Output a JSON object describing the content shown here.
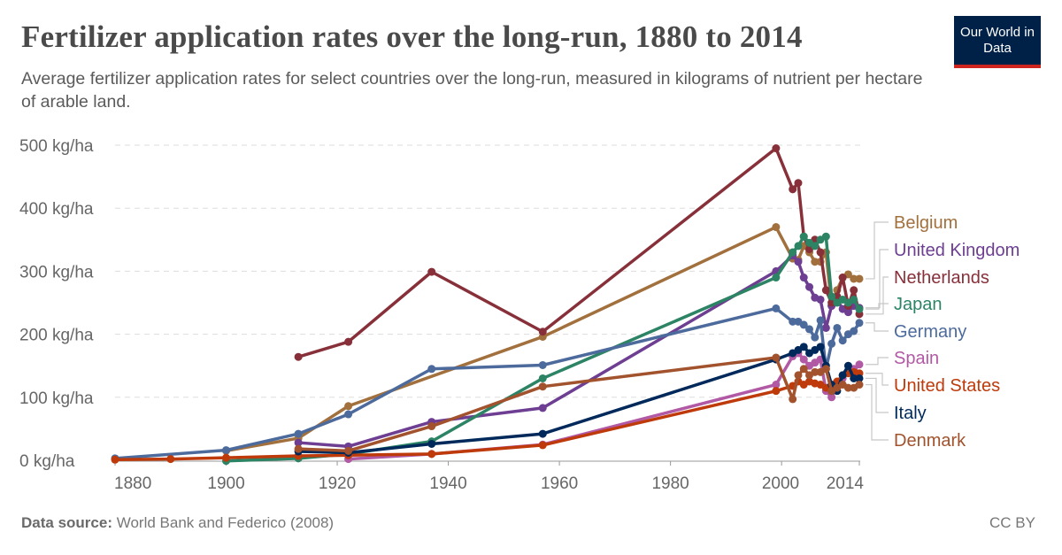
{
  "header": {
    "title": "Fertilizer application rates over the long-run, 1880 to 2014",
    "subtitle": "Average fertilizer application rates for select countries over the long-run, measured in kilograms of nutrient per hectare of arable land.",
    "logo": "Our World in Data"
  },
  "footer": {
    "source_label": "Data source:",
    "source": "World Bank and Federico (2008)",
    "license": "CC BY"
  },
  "chart_data": {
    "type": "line",
    "title": "Fertilizer application rates over the long-run, 1880 to 2014",
    "xlim": [
      1880,
      2014
    ],
    "ylim": [
      0,
      500
    ],
    "x_ticks": [
      "1880",
      "1900",
      "1920",
      "1940",
      "1960",
      "1980",
      "2000",
      "2014"
    ],
    "y_ticks": [
      "0 kg/ha",
      "100 kg/ha",
      "200 kg/ha",
      "300 kg/ha",
      "400 kg/ha",
      "500 kg/ha"
    ],
    "grid": "horizontal dashed",
    "legend": "right, line-end labels",
    "series": [
      {
        "name": "Belgium",
        "color": "#a2703d",
        "x": [
          1900,
          1913,
          1922,
          1957,
          1999,
          2002,
          2003,
          2004,
          2005,
          2006,
          2007,
          2008,
          2009,
          2010,
          2011,
          2012,
          2013,
          2014
        ],
        "y": [
          15,
          35,
          86,
          196,
          370,
          320,
          318,
          340,
          330,
          315,
          315,
          330,
          245,
          270,
          290,
          295,
          288,
          288
        ]
      },
      {
        "name": "United Kingdom",
        "color": "#6d3e91",
        "x": [
          1913,
          1922,
          1937,
          1957,
          1999,
          2002,
          2003,
          2004,
          2005,
          2006,
          2007,
          2008,
          2009,
          2010,
          2011,
          2012,
          2013,
          2014
        ],
        "y": [
          28,
          22,
          61,
          83,
          300,
          325,
          315,
          290,
          275,
          258,
          255,
          210,
          245,
          255,
          240,
          235,
          245,
          242
        ]
      },
      {
        "name": "Netherlands",
        "color": "#883039",
        "x": [
          1913,
          1922,
          1937,
          1957,
          1999,
          2002,
          2003,
          2004,
          2005,
          2006,
          2007,
          2008,
          2009,
          2010,
          2011,
          2012,
          2013,
          2014
        ],
        "y": [
          164,
          188,
          299,
          204,
          495,
          430,
          440,
          355,
          335,
          350,
          330,
          270,
          250,
          260,
          290,
          245,
          270,
          232
        ]
      },
      {
        "name": "Japan",
        "color": "#2c8465",
        "x": [
          1900,
          1913,
          1922,
          1937,
          1957,
          1999,
          2002,
          2003,
          2004,
          2005,
          2006,
          2007,
          2008,
          2009,
          2010,
          2011,
          2012,
          2013,
          2014
        ],
        "y": [
          -1,
          3,
          10,
          30,
          130,
          290,
          330,
          340,
          355,
          345,
          340,
          350,
          355,
          260,
          250,
          255,
          250,
          255,
          240
        ]
      },
      {
        "name": "Germany",
        "color": "#4c6a9c",
        "x": [
          1880,
          1900,
          1913,
          1922,
          1937,
          1957,
          1999,
          2002,
          2003,
          2004,
          2005,
          2006,
          2007,
          2008,
          2009,
          2010,
          2011,
          2012,
          2013,
          2014
        ],
        "y": [
          3,
          16,
          42,
          73,
          145,
          151,
          241,
          220,
          220,
          215,
          208,
          195,
          222,
          145,
          185,
          210,
          190,
          200,
          205,
          218
        ]
      },
      {
        "name": "Spain",
        "color": "#b159a4",
        "x": [
          1922,
          1937,
          1957,
          1999,
          2002,
          2003,
          2004,
          2005,
          2006,
          2007,
          2008,
          2009,
          2010,
          2011,
          2012,
          2013,
          2014
        ],
        "y": [
          2,
          10,
          25,
          120,
          165,
          170,
          160,
          150,
          155,
          160,
          110,
          100,
          120,
          130,
          140,
          145,
          152
        ]
      },
      {
        "name": "United States",
        "color": "#be3a0b",
        "x": [
          1880,
          1890,
          1900,
          1913,
          1922,
          1937,
          1957,
          1999,
          2002,
          2003,
          2004,
          2005,
          2006,
          2007,
          2008,
          2009,
          2010,
          2011,
          2012,
          2013,
          2014
        ],
        "y": [
          1,
          2,
          4,
          7,
          8,
          10,
          24,
          110,
          118,
          125,
          120,
          125,
          122,
          120,
          115,
          110,
          125,
          135,
          138,
          140,
          138
        ]
      },
      {
        "name": "Italy",
        "color": "#00295b",
        "x": [
          1913,
          1922,
          1937,
          1957,
          1999,
          2002,
          2003,
          2004,
          2005,
          2006,
          2007,
          2008,
          2009,
          2010,
          2011,
          2012,
          2013,
          2014
        ],
        "y": [
          14,
          12,
          26,
          42,
          160,
          170,
          175,
          180,
          170,
          175,
          180,
          150,
          120,
          110,
          135,
          150,
          130,
          130
        ]
      },
      {
        "name": "Denmark",
        "color": "#a2522c",
        "x": [
          1913,
          1922,
          1937,
          1957,
          1999,
          2002,
          2003,
          2004,
          2005,
          2006,
          2007,
          2008,
          2009,
          2010,
          2011,
          2012,
          2013,
          2014
        ],
        "y": [
          18,
          15,
          54,
          117,
          163,
          97,
          135,
          145,
          135,
          140,
          140,
          145,
          110,
          115,
          120,
          115,
          115,
          120
        ]
      }
    ]
  }
}
